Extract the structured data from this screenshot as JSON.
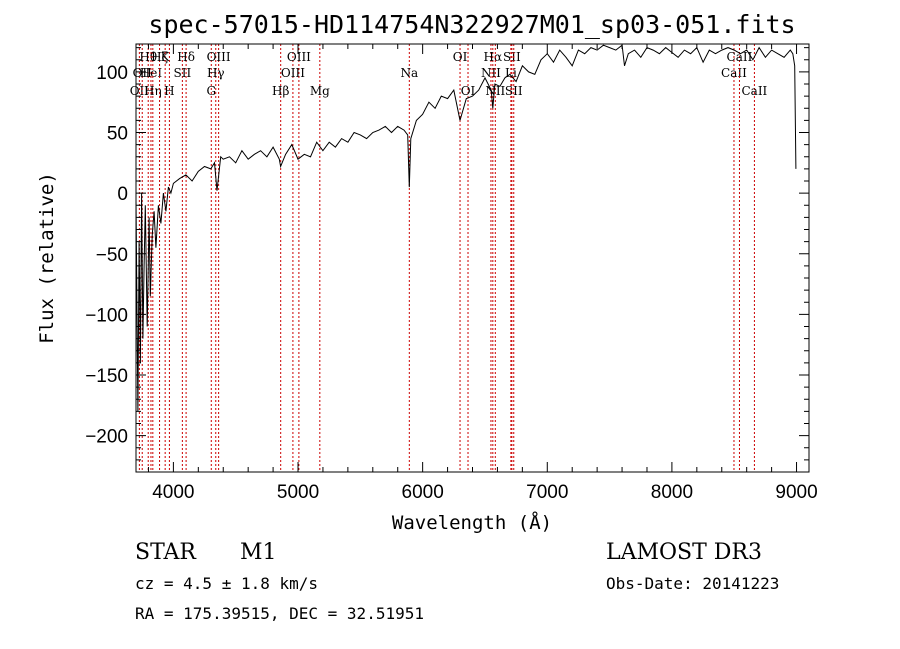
{
  "chart_data": {
    "type": "line",
    "title": "spec-57015-HD114754N322927M01_sp03-051.fits",
    "xlabel": "Wavelength (Å)",
    "ylabel": "Flux (relative)",
    "xlim": [
      3700,
      9100
    ],
    "ylim": [
      -230,
      123
    ],
    "xticks": [
      4000,
      5000,
      6000,
      7000,
      8000,
      9000
    ],
    "xtick_labels": [
      "4000",
      "5000",
      "6000",
      "7000",
      "8000",
      "9000"
    ],
    "yticks": [
      -200,
      -150,
      -100,
      -50,
      0,
      50,
      100
    ],
    "ytick_labels": [
      "−200",
      "−150",
      "−100",
      "−50",
      "0",
      "50",
      "100"
    ],
    "grid": false,
    "legend": "none",
    "spectrum": {
      "x": [
        3700,
        3715,
        3725,
        3735,
        3745,
        3755,
        3765,
        3775,
        3790,
        3805,
        3815,
        3830,
        3845,
        3860,
        3880,
        3900,
        3920,
        3940,
        3960,
        3980,
        4000,
        4050,
        4100,
        4150,
        4200,
        4250,
        4300,
        4330,
        4350,
        4380,
        4400,
        4450,
        4500,
        4550,
        4600,
        4650,
        4700,
        4750,
        4800,
        4850,
        4860,
        4900,
        4950,
        5000,
        5050,
        5100,
        5150,
        5200,
        5250,
        5300,
        5350,
        5400,
        5450,
        5500,
        5550,
        5600,
        5650,
        5700,
        5750,
        5800,
        5850,
        5880,
        5893,
        5905,
        5950,
        6000,
        6050,
        6100,
        6150,
        6200,
        6250,
        6300,
        6350,
        6400,
        6450,
        6500,
        6550,
        6563,
        6580,
        6620,
        6660,
        6700,
        6750,
        6800,
        6850,
        6900,
        6950,
        7000,
        7050,
        7100,
        7150,
        7200,
        7250,
        7300,
        7350,
        7400,
        7450,
        7500,
        7550,
        7600,
        7620,
        7650,
        7700,
        7750,
        7800,
        7850,
        7900,
        7950,
        8000,
        8050,
        8100,
        8150,
        8200,
        8250,
        8300,
        8350,
        8400,
        8450,
        8500,
        8550,
        8600,
        8650,
        8700,
        8750,
        8800,
        8850,
        8900,
        8950,
        8970,
        8985,
        8995
      ],
      "y": [
        -5,
        -180,
        -40,
        -140,
        0,
        -120,
        -60,
        -10,
        -110,
        -20,
        -85,
        -35,
        -15,
        -45,
        -10,
        -25,
        0,
        -15,
        5,
        0,
        8,
        12,
        15,
        10,
        18,
        22,
        20,
        25,
        2,
        30,
        28,
        30,
        25,
        35,
        28,
        32,
        35,
        30,
        38,
        28,
        22,
        32,
        40,
        28,
        32,
        30,
        42,
        35,
        42,
        38,
        45,
        42,
        50,
        48,
        45,
        50,
        52,
        55,
        50,
        55,
        52,
        48,
        5,
        45,
        60,
        65,
        75,
        70,
        80,
        78,
        85,
        60,
        78,
        80,
        85,
        95,
        85,
        70,
        90,
        88,
        95,
        98,
        92,
        105,
        100,
        98,
        110,
        115,
        108,
        118,
        112,
        105,
        118,
        115,
        120,
        118,
        122,
        120,
        118,
        122,
        105,
        115,
        118,
        112,
        120,
        118,
        115,
        120,
        116,
        112,
        118,
        115,
        120,
        108,
        118,
        115,
        118,
        120,
        118,
        115,
        118,
        110,
        120,
        112,
        118,
        115,
        112,
        118,
        115,
        105,
        20
      ]
    },
    "line_markers": [
      {
        "w": 3727,
        "label": "OII",
        "row": 2
      },
      {
        "w": 3750,
        "label": "OII",
        "row": 1
      },
      {
        "w": 3798,
        "label": "Hθ",
        "row": 0
      },
      {
        "w": 3820,
        "label": "HeI",
        "row": 1
      },
      {
        "w": 3835,
        "label": "Hη",
        "row": 2
      },
      {
        "w": 3889,
        "label": "Hζ",
        "row": 0
      },
      {
        "w": 3934,
        "label": "K",
        "row": 0
      },
      {
        "w": 3968,
        "label": "H",
        "row": 2
      },
      {
        "w": 4072,
        "label": "SII",
        "row": 1
      },
      {
        "w": 4102,
        "label": "Hδ",
        "row": 0
      },
      {
        "w": 4304,
        "label": "G",
        "row": 2
      },
      {
        "w": 4340,
        "label": "Hγ",
        "row": 1
      },
      {
        "w": 4363,
        "label": "OIII",
        "row": 0
      },
      {
        "w": 4861,
        "label": "Hβ",
        "row": 2
      },
      {
        "w": 4959,
        "label": "OIII",
        "row": 1
      },
      {
        "w": 5007,
        "label": "OIII",
        "row": 0
      },
      {
        "w": 5175,
        "label": "Mg",
        "row": 2
      },
      {
        "w": 5893,
        "label": "Na",
        "row": 1
      },
      {
        "w": 6300,
        "label": "OI",
        "row": 0
      },
      {
        "w": 6364,
        "label": "OI",
        "row": 2
      },
      {
        "w": 6548,
        "label": "NII",
        "row": 1
      },
      {
        "w": 6563,
        "label": "Hα",
        "row": 0
      },
      {
        "w": 6583,
        "label": "NII",
        "row": 2
      },
      {
        "w": 6708,
        "label": "Li",
        "row": 1
      },
      {
        "w": 6716,
        "label": "SII",
        "row": 0
      },
      {
        "w": 6731,
        "label": "SII",
        "row": 2
      },
      {
        "w": 8498,
        "label": "CaII",
        "row": 1
      },
      {
        "w": 8542,
        "label": "CaII",
        "row": 0
      },
      {
        "w": 8662,
        "label": "CaII",
        "row": 2
      }
    ],
    "colors": {
      "spectrum": "#000000",
      "markers": "#cc0000"
    }
  },
  "info": {
    "class": "STAR",
    "subclass": "M1",
    "survey": "LAMOST DR3",
    "cz": "cz = 4.5 ± 1.8 km/s",
    "obs_date": "Obs-Date: 20141223",
    "coords": "RA = 175.39515, DEC =  32.51951"
  }
}
